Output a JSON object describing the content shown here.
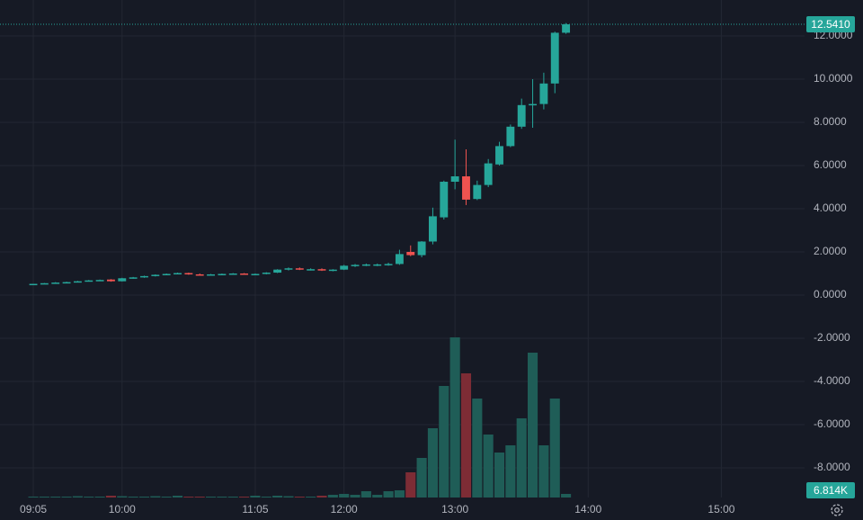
{
  "chart_data": {
    "type": "candlestick",
    "colors": {
      "up": "#26a69a",
      "down": "#ef5350",
      "volume_up": "#1f5d57",
      "volume_down": "#7d2c35"
    },
    "xlim": [
      -3,
      69.5
    ],
    "xticks": [
      {
        "value": 0,
        "label": "09:05"
      },
      {
        "value": 8,
        "label": "10:00"
      },
      {
        "value": 20,
        "label": "11:05"
      },
      {
        "value": 28,
        "label": "12:00"
      },
      {
        "value": 38,
        "label": "13:00"
      },
      {
        "value": 50,
        "label": "14:00"
      },
      {
        "value": 62,
        "label": "15:00"
      }
    ],
    "ylim": [
      -9.375,
      13.667
    ],
    "yticks": [
      {
        "value": -8,
        "label": "-8.0000"
      },
      {
        "value": -6,
        "label": "-6.0000"
      },
      {
        "value": -4,
        "label": "-4.0000"
      },
      {
        "value": -2,
        "label": "-2.0000"
      },
      {
        "value": 0,
        "label": "0.0000"
      },
      {
        "value": 2,
        "label": "2.0000"
      },
      {
        "value": 4,
        "label": "4.0000"
      },
      {
        "value": 6,
        "label": "6.0000"
      },
      {
        "value": 8,
        "label": "8.0000"
      },
      {
        "value": 10,
        "label": "10.0000"
      },
      {
        "value": 12,
        "label": "12.0000"
      }
    ],
    "grid": true,
    "open": [
      0.5,
      0.52,
      0.55,
      0.58,
      0.6,
      0.64,
      0.68,
      0.72,
      0.64,
      0.78,
      0.82,
      0.88,
      0.94,
      0.98,
      1.02,
      0.96,
      0.94,
      0.96,
      0.98,
      1.0,
      0.96,
      0.98,
      1.04,
      1.18,
      1.24,
      1.18,
      1.2,
      1.14,
      1.18,
      1.36,
      1.4,
      1.42,
      1.42,
      1.44,
      2.0,
      1.85,
      2.48,
      3.6,
      5.25,
      5.5,
      4.45,
      5.1,
      6.05,
      6.9,
      7.8,
      8.8,
      8.85,
      9.8,
      12.15
    ],
    "high": [
      0.52,
      0.56,
      0.6,
      0.62,
      0.66,
      0.7,
      0.72,
      0.74,
      0.8,
      0.84,
      0.9,
      0.96,
      1.0,
      1.04,
      1.04,
      1.0,
      0.98,
      1.0,
      1.02,
      1.02,
      1.0,
      1.06,
      1.2,
      1.28,
      1.28,
      1.24,
      1.24,
      1.2,
      1.4,
      1.44,
      1.46,
      1.46,
      1.5,
      2.1,
      2.3,
      2.5,
      4.05,
      5.3,
      7.2,
      6.75,
      5.3,
      6.3,
      7.1,
      7.9,
      9.1,
      10.0,
      10.3,
      12.2,
      12.6
    ],
    "low": [
      0.48,
      0.51,
      0.54,
      0.57,
      0.59,
      0.63,
      0.66,
      0.62,
      0.63,
      0.76,
      0.8,
      0.86,
      0.92,
      0.96,
      0.94,
      0.92,
      0.92,
      0.94,
      0.96,
      0.94,
      0.94,
      0.96,
      1.02,
      1.14,
      1.16,
      1.14,
      1.12,
      1.1,
      1.16,
      1.3,
      1.34,
      1.34,
      1.36,
      1.4,
      1.8,
      1.75,
      2.35,
      3.5,
      4.9,
      4.17,
      4.4,
      5.0,
      6.0,
      6.85,
      7.7,
      7.75,
      8.6,
      9.35,
      12.1
    ],
    "close": [
      0.52,
      0.55,
      0.58,
      0.6,
      0.64,
      0.68,
      0.7,
      0.64,
      0.78,
      0.82,
      0.88,
      0.94,
      0.98,
      1.02,
      0.96,
      0.94,
      0.96,
      0.98,
      1.0,
      0.96,
      0.98,
      1.04,
      1.18,
      1.24,
      1.18,
      1.2,
      1.14,
      1.18,
      1.36,
      1.4,
      1.42,
      1.42,
      1.44,
      1.9,
      1.85,
      2.48,
      3.65,
      5.25,
      5.5,
      4.42,
      5.1,
      6.1,
      6.9,
      7.8,
      8.8,
      8.85,
      9.8,
      12.15,
      12.541
    ],
    "volume_lim": [
      0,
      940000
    ],
    "volume": [
      1700,
      1700,
      1700,
      1700,
      2500,
      1700,
      1700,
      3400,
      2500,
      1700,
      1700,
      2500,
      1700,
      3400,
      1700,
      1700,
      1700,
      1700,
      1700,
      1700,
      3400,
      1700,
      3400,
      2500,
      1700,
      1700,
      3400,
      5100,
      6800,
      5100,
      11900,
      5100,
      11900,
      13600,
      47600,
      74800,
      130900,
      210800,
      302600,
      234600,
      187000,
      119000,
      85000,
      98600,
      149600,
      273700,
      98600,
      187000,
      6814
    ],
    "last_price": {
      "value": 12.541,
      "label": "12.5410"
    },
    "last_volume": {
      "value": 6814,
      "label": "6.814K"
    }
  }
}
